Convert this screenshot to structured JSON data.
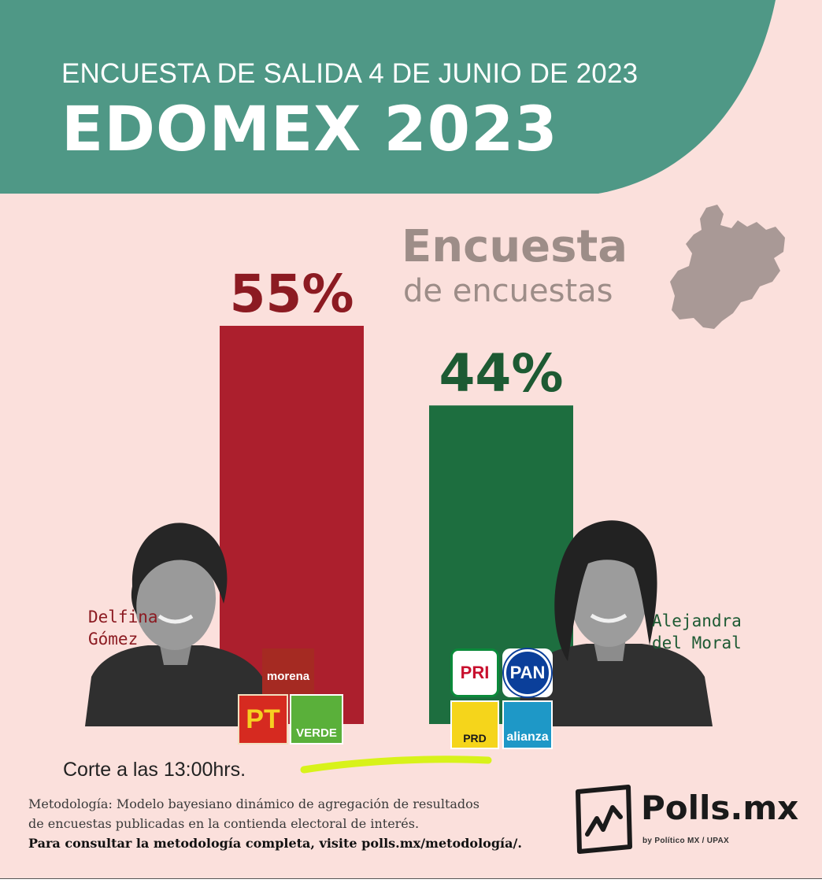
{
  "header": {
    "subtitle": "ENCUESTA DE SALIDA 4 DE JUNIO DE 2023",
    "title": "EDOMEX 2023",
    "color": "#4f9886"
  },
  "brand": {
    "line1": "Encuesta",
    "line2": "de encuestas"
  },
  "chart_data": {
    "type": "bar",
    "categories": [
      "Delfina Gómez",
      "Alejandra del Moral"
    ],
    "values": [
      55,
      44
    ],
    "value_labels": [
      "55%",
      "44%"
    ],
    "colors": [
      "#ac1f2d",
      "#1d6e3f"
    ],
    "label_colors": [
      "#8c1b22",
      "#1d5a33"
    ],
    "ylim": [
      0,
      100
    ]
  },
  "candidates": [
    {
      "name": "Delfina\nGómez",
      "parties": [
        "morena",
        "PT",
        "VERDE"
      ]
    },
    {
      "name": "Alejandra\ndel Moral",
      "parties": [
        "PRI",
        "PAN",
        "PRD",
        "alianza"
      ]
    }
  ],
  "footer": {
    "cut_time": "Corte a las 13:00hrs.",
    "methodology_line1": "Metodología: Modelo bayesiano dinámico de agregación de resultados",
    "methodology_line2": "de encuestas publicadas en la contienda electoral de interés.",
    "methodology_link": "Para consultar la metodología completa, visite polls.mx/metodología/.",
    "logo_name": "Polls.mx",
    "logo_by": "by Político MX / UPAX"
  }
}
